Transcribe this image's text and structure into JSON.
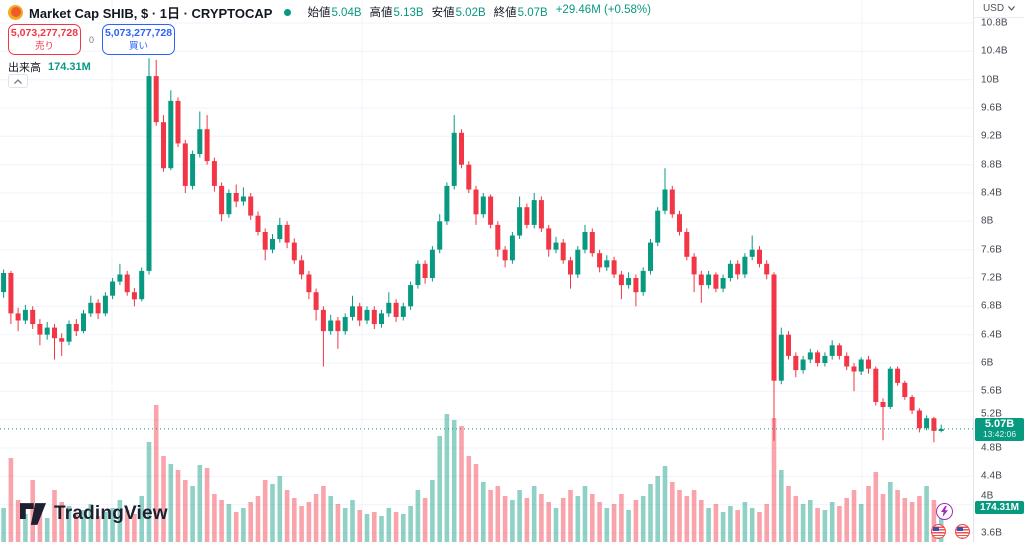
{
  "header": {
    "title": "Market Cap SHIB, $ · 1日 · CRYPTOCAP",
    "status": "market-open",
    "ohlc": {
      "open_label": "始値",
      "open": "5.04B",
      "high_label": "高値",
      "high": "5.13B",
      "low_label": "安値",
      "low": "5.02B",
      "close_label": "終値",
      "close": "5.07B",
      "change": "+29.46M (+0.58%)"
    }
  },
  "order_panel": {
    "sell_price": "5,073,277,728",
    "sell_label": "売り",
    "spread": "0",
    "buy_price": "5,073,277,728",
    "buy_label": "買い"
  },
  "indicator_row": {
    "label": "出来高",
    "value": "174.31M"
  },
  "price_axis": {
    "currency": "USD",
    "price_badge": "5.07B",
    "countdown": "13:42:06",
    "volume_badge": "174.31M"
  },
  "watermark": "TradingView",
  "colors": {
    "up": "#089981",
    "down": "#f23645",
    "buy": "#2962ff",
    "sell": "#f23645",
    "grid": "#f0f3fa",
    "axis_text": "#424650",
    "last_price_line": "#089981"
  },
  "chart_data": {
    "type": "candlestick",
    "title": "Market Cap SHIB",
    "interval": "1日",
    "currency": "USD",
    "legend_position": "top-left",
    "grid": true,
    "ylim_b": [
      3.47,
      10.8
    ],
    "last_price_b": 5.07,
    "last_volume_m": 174.31,
    "price_ticks": [
      {
        "label": "10.8B",
        "value": 10.8
      },
      {
        "label": "10.4B",
        "value": 10.4
      },
      {
        "label": "10B",
        "value": 10.0
      },
      {
        "label": "9.6B",
        "value": 9.6
      },
      {
        "label": "9.2B",
        "value": 9.2
      },
      {
        "label": "8.8B",
        "value": 8.8
      },
      {
        "label": "8.4B",
        "value": 8.4
      },
      {
        "label": "8B",
        "value": 8.0
      },
      {
        "label": "7.6B",
        "value": 7.6
      },
      {
        "label": "7.2B",
        "value": 7.2
      },
      {
        "label": "6.8B",
        "value": 6.8
      },
      {
        "label": "6.4B",
        "value": 6.4
      },
      {
        "label": "6B",
        "value": 6.0
      },
      {
        "label": "5.6B",
        "value": 5.6
      },
      {
        "label": "5.2B",
        "value": 5.2
      },
      {
        "label": "4.8B",
        "value": 4.8
      },
      {
        "label": "4.4B",
        "value": 4.4
      },
      {
        "label": "4B",
        "value": 4.0
      },
      {
        "label": "3.6B",
        "value": 3.6
      }
    ],
    "candles_ohlc_b": [
      [
        7.0,
        7.32,
        6.92,
        7.27
      ],
      [
        7.27,
        7.3,
        6.55,
        6.7
      ],
      [
        6.7,
        6.78,
        6.45,
        6.6
      ],
      [
        6.6,
        6.82,
        6.55,
        6.75
      ],
      [
        6.75,
        6.8,
        6.48,
        6.55
      ],
      [
        6.55,
        6.62,
        6.25,
        6.4
      ],
      [
        6.4,
        6.58,
        6.33,
        6.5
      ],
      [
        6.5,
        6.55,
        6.05,
        6.35
      ],
      [
        6.35,
        6.42,
        6.1,
        6.3
      ],
      [
        6.3,
        6.6,
        6.25,
        6.55
      ],
      [
        6.55,
        6.62,
        6.38,
        6.45
      ],
      [
        6.45,
        6.75,
        6.42,
        6.7
      ],
      [
        6.7,
        6.95,
        6.65,
        6.85
      ],
      [
        6.85,
        6.9,
        6.62,
        6.7
      ],
      [
        6.7,
        7.0,
        6.66,
        6.95
      ],
      [
        6.95,
        7.2,
        6.9,
        7.15
      ],
      [
        7.15,
        7.4,
        7.1,
        7.25
      ],
      [
        7.25,
        7.3,
        6.95,
        7.0
      ],
      [
        7.0,
        7.06,
        6.8,
        6.9
      ],
      [
        6.9,
        7.35,
        6.87,
        7.3
      ],
      [
        7.3,
        10.3,
        7.25,
        10.05
      ],
      [
        10.05,
        10.28,
        9.35,
        9.4
      ],
      [
        9.4,
        9.5,
        8.7,
        8.75
      ],
      [
        8.75,
        9.85,
        8.72,
        9.7
      ],
      [
        9.7,
        9.75,
        9.05,
        9.1
      ],
      [
        9.1,
        9.15,
        8.4,
        8.5
      ],
      [
        8.5,
        9.0,
        8.45,
        8.95
      ],
      [
        8.95,
        9.55,
        8.9,
        9.3
      ],
      [
        9.3,
        9.5,
        8.8,
        8.85
      ],
      [
        8.85,
        8.9,
        8.42,
        8.5
      ],
      [
        8.5,
        8.55,
        8.0,
        8.1
      ],
      [
        8.1,
        8.45,
        8.05,
        8.4
      ],
      [
        8.4,
        8.52,
        8.2,
        8.28
      ],
      [
        8.28,
        8.48,
        8.22,
        8.35
      ],
      [
        8.35,
        8.4,
        8.02,
        8.08
      ],
      [
        8.08,
        8.14,
        7.8,
        7.85
      ],
      [
        7.85,
        7.9,
        7.45,
        7.6
      ],
      [
        7.6,
        7.82,
        7.55,
        7.75
      ],
      [
        7.75,
        8.05,
        7.7,
        7.95
      ],
      [
        7.95,
        8.0,
        7.62,
        7.7
      ],
      [
        7.7,
        7.76,
        7.4,
        7.45
      ],
      [
        7.45,
        7.52,
        7.18,
        7.25
      ],
      [
        7.25,
        7.3,
        6.9,
        7.0
      ],
      [
        7.0,
        7.05,
        6.6,
        6.75
      ],
      [
        6.75,
        6.8,
        5.95,
        6.45
      ],
      [
        6.45,
        6.68,
        6.4,
        6.6
      ],
      [
        6.6,
        6.65,
        6.2,
        6.45
      ],
      [
        6.45,
        6.7,
        6.4,
        6.65
      ],
      [
        6.65,
        6.95,
        6.6,
        6.8
      ],
      [
        6.8,
        6.85,
        6.52,
        6.6
      ],
      [
        6.6,
        6.8,
        6.55,
        6.75
      ],
      [
        6.75,
        6.8,
        6.48,
        6.55
      ],
      [
        6.55,
        6.75,
        6.5,
        6.7
      ],
      [
        6.7,
        7.0,
        6.65,
        6.85
      ],
      [
        6.85,
        6.9,
        6.58,
        6.65
      ],
      [
        6.65,
        6.85,
        6.6,
        6.8
      ],
      [
        6.8,
        7.15,
        6.75,
        7.1
      ],
      [
        7.1,
        7.45,
        7.05,
        7.4
      ],
      [
        7.4,
        7.45,
        7.12,
        7.2
      ],
      [
        7.2,
        7.65,
        7.15,
        7.6
      ],
      [
        7.6,
        8.1,
        7.55,
        8.0
      ],
      [
        8.0,
        8.55,
        7.95,
        8.5
      ],
      [
        8.5,
        9.5,
        8.45,
        9.25
      ],
      [
        9.25,
        9.3,
        8.75,
        8.8
      ],
      [
        8.8,
        8.85,
        8.4,
        8.45
      ],
      [
        8.45,
        8.5,
        7.95,
        8.1
      ],
      [
        8.1,
        8.4,
        8.05,
        8.35
      ],
      [
        8.35,
        8.38,
        7.9,
        7.95
      ],
      [
        7.95,
        8.0,
        7.5,
        7.6
      ],
      [
        7.6,
        7.65,
        7.35,
        7.45
      ],
      [
        7.45,
        7.85,
        7.4,
        7.8
      ],
      [
        7.8,
        8.35,
        7.75,
        8.2
      ],
      [
        8.2,
        8.25,
        7.9,
        7.95
      ],
      [
        7.95,
        8.4,
        7.9,
        8.3
      ],
      [
        8.3,
        8.35,
        7.85,
        7.9
      ],
      [
        7.9,
        7.95,
        7.5,
        7.6
      ],
      [
        7.6,
        7.78,
        7.55,
        7.7
      ],
      [
        7.7,
        7.75,
        7.4,
        7.45
      ],
      [
        7.45,
        7.5,
        7.05,
        7.25
      ],
      [
        7.25,
        7.65,
        7.2,
        7.6
      ],
      [
        7.6,
        7.95,
        7.55,
        7.85
      ],
      [
        7.85,
        7.9,
        7.5,
        7.55
      ],
      [
        7.55,
        7.6,
        7.28,
        7.35
      ],
      [
        7.35,
        7.52,
        7.3,
        7.45
      ],
      [
        7.45,
        7.5,
        7.2,
        7.25
      ],
      [
        7.25,
        7.3,
        6.9,
        7.1
      ],
      [
        7.1,
        7.28,
        7.05,
        7.2
      ],
      [
        7.2,
        7.25,
        6.8,
        7.0
      ],
      [
        7.0,
        7.35,
        6.95,
        7.3
      ],
      [
        7.3,
        7.75,
        7.25,
        7.7
      ],
      [
        7.7,
        8.2,
        7.65,
        8.15
      ],
      [
        8.15,
        8.75,
        8.1,
        8.45
      ],
      [
        8.45,
        8.5,
        8.05,
        8.1
      ],
      [
        8.1,
        8.15,
        7.8,
        7.85
      ],
      [
        7.85,
        7.9,
        7.45,
        7.5
      ],
      [
        7.5,
        7.55,
        7.0,
        7.25
      ],
      [
        7.25,
        7.3,
        6.85,
        7.1
      ],
      [
        7.1,
        7.3,
        7.05,
        7.25
      ],
      [
        7.25,
        7.28,
        7.0,
        7.05
      ],
      [
        7.05,
        7.25,
        7.0,
        7.2
      ],
      [
        7.2,
        7.45,
        7.15,
        7.4
      ],
      [
        7.4,
        7.45,
        7.18,
        7.25
      ],
      [
        7.25,
        7.55,
        7.2,
        7.5
      ],
      [
        7.5,
        7.8,
        7.45,
        7.6
      ],
      [
        7.6,
        7.65,
        7.35,
        7.4
      ],
      [
        7.4,
        7.45,
        7.18,
        7.25
      ],
      [
        7.25,
        7.28,
        4.9,
        5.75
      ],
      [
        5.75,
        6.5,
        5.7,
        6.4
      ],
      [
        6.4,
        6.45,
        6.05,
        6.1
      ],
      [
        6.1,
        6.15,
        5.8,
        5.9
      ],
      [
        5.9,
        6.1,
        5.85,
        6.05
      ],
      [
        6.05,
        6.2,
        6.0,
        6.15
      ],
      [
        6.15,
        6.18,
        5.95,
        6.0
      ],
      [
        6.0,
        6.15,
        5.95,
        6.1
      ],
      [
        6.1,
        6.32,
        6.05,
        6.25
      ],
      [
        6.25,
        6.28,
        6.05,
        6.1
      ],
      [
        6.1,
        6.15,
        5.9,
        5.95
      ],
      [
        5.95,
        6.0,
        5.6,
        5.88
      ],
      [
        5.88,
        6.08,
        5.83,
        6.05
      ],
      [
        6.05,
        6.1,
        5.85,
        5.92
      ],
      [
        5.92,
        5.95,
        5.4,
        5.45
      ],
      [
        5.45,
        5.5,
        4.91,
        5.38
      ],
      [
        5.38,
        5.95,
        5.35,
        5.92
      ],
      [
        5.92,
        5.95,
        5.68,
        5.72
      ],
      [
        5.72,
        5.75,
        5.48,
        5.52
      ],
      [
        5.52,
        5.55,
        5.28,
        5.33
      ],
      [
        5.33,
        5.36,
        5.02,
        5.08
      ],
      [
        5.08,
        5.26,
        5.05,
        5.22
      ],
      [
        5.22,
        5.24,
        4.88,
        5.04
      ],
      [
        5.04,
        5.13,
        5.02,
        5.07
      ]
    ],
    "volumes_m": [
      170,
      420,
      210,
      140,
      310,
      150,
      120,
      260,
      200,
      180,
      140,
      160,
      190,
      130,
      150,
      170,
      210,
      160,
      140,
      230,
      500,
      685,
      430,
      390,
      360,
      310,
      280,
      385,
      370,
      240,
      210,
      190,
      150,
      170,
      200,
      230,
      310,
      290,
      330,
      260,
      220,
      180,
      200,
      240,
      280,
      230,
      190,
      170,
      210,
      160,
      140,
      150,
      130,
      170,
      150,
      140,
      180,
      260,
      220,
      310,
      530,
      640,
      610,
      580,
      430,
      390,
      300,
      260,
      280,
      230,
      210,
      260,
      220,
      280,
      240,
      200,
      170,
      220,
      260,
      230,
      280,
      240,
      200,
      170,
      190,
      240,
      160,
      210,
      230,
      290,
      330,
      380,
      300,
      260,
      230,
      260,
      210,
      170,
      190,
      150,
      180,
      160,
      200,
      170,
      150,
      190,
      620,
      360,
      280,
      230,
      190,
      210,
      170,
      160,
      200,
      180,
      220,
      260,
      190,
      280,
      350,
      240,
      300,
      260,
      220,
      200,
      230,
      280,
      210,
      174.31
    ]
  }
}
